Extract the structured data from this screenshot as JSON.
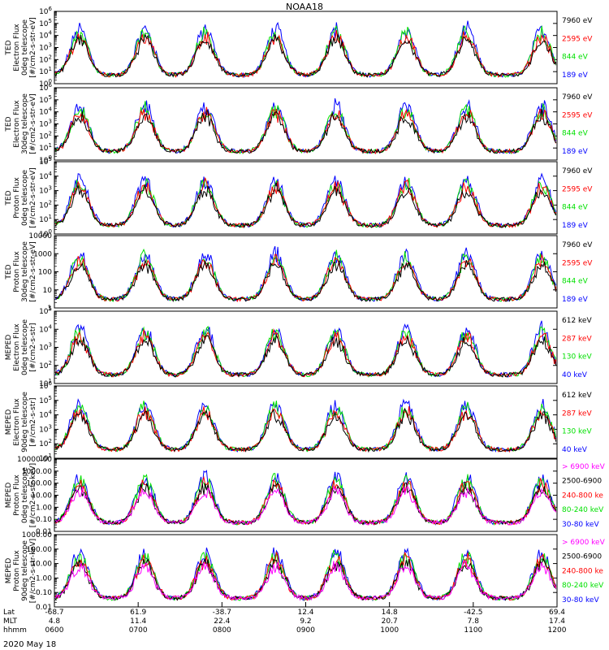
{
  "title": "NOAA18",
  "date_label": "2020 May 18",
  "colors": {
    "blue": "#0000ff",
    "red": "#ff0000",
    "green": "#00e000",
    "black": "#000000",
    "magenta": "#ff00ff"
  },
  "chart_data": {
    "type": "scatter",
    "x_axis": {
      "times": [
        "0600",
        "0700",
        "0800",
        "0900",
        "1000",
        "1100",
        "1200"
      ],
      "rows": [
        {
          "label": "Lat",
          "values": [
            "-68.7",
            "61.9",
            "-38.7",
            "12.4",
            "14.8",
            "-42.5",
            "69.4"
          ]
        },
        {
          "label": "MLT",
          "values": [
            "4.8",
            "11.4",
            "22.4",
            "9.2",
            "20.7",
            "7.8",
            "17.4"
          ]
        },
        {
          "label": "hhmm",
          "values": [
            "0600",
            "0700",
            "0800",
            "0900",
            "1000",
            "1100",
            "1200"
          ]
        }
      ]
    },
    "panels": [
      {
        "ylabel": [
          "TED",
          "Electron Flux",
          "0deg telescope",
          "[#/cm2-s-str-eV]"
        ],
        "yscale": "log",
        "ytick_style": "power",
        "ylim_exp": [
          0,
          6
        ],
        "legend": [
          {
            "text": "7960 eV",
            "color": "black"
          },
          {
            "text": "2595 eV",
            "color": "red"
          },
          {
            "text": "844 eV",
            "color": "green"
          },
          {
            "text": "189 eV",
            "color": "blue"
          }
        ]
      },
      {
        "ylabel": [
          "TED",
          "Electron Flux",
          "30deg telescope",
          "[#/cm2-s-str-eV]"
        ],
        "yscale": "log",
        "ytick_style": "power",
        "ylim_exp": [
          0,
          6
        ],
        "legend": [
          {
            "text": "7960 eV",
            "color": "black"
          },
          {
            "text": "2595 eV",
            "color": "red"
          },
          {
            "text": "844 eV",
            "color": "green"
          },
          {
            "text": "189 eV",
            "color": "blue"
          }
        ]
      },
      {
        "ylabel": [
          "TED",
          "Proton Flux",
          "0deg telescope",
          "[#/cm2-s-str-eV]"
        ],
        "yscale": "log",
        "ytick_style": "power",
        "ylim_exp": [
          0,
          5
        ],
        "legend": [
          {
            "text": "7960 eV",
            "color": "black"
          },
          {
            "text": "2595 eV",
            "color": "red"
          },
          {
            "text": "844 eV",
            "color": "green"
          },
          {
            "text": "189 eV",
            "color": "blue"
          }
        ]
      },
      {
        "ylabel": [
          "TED",
          "Proton Flux",
          "30deg telescope",
          "[#/cm2-s-str-eV]"
        ],
        "yscale": "log",
        "ytick_style": "plain",
        "ylim_exp": [
          0,
          4
        ],
        "tick_labels": [
          "1",
          "10",
          "100",
          "1000",
          "10000"
        ],
        "legend": [
          {
            "text": "7960 eV",
            "color": "black"
          },
          {
            "text": "2595 eV",
            "color": "red"
          },
          {
            "text": "844 eV",
            "color": "green"
          },
          {
            "text": "189 eV",
            "color": "blue"
          }
        ]
      },
      {
        "ylabel": [
          "MEPED",
          "Electron Flux",
          "0deg telescope",
          "[#/cm2-s-str]"
        ],
        "yscale": "log",
        "ytick_style": "power",
        "ylim_exp": [
          1,
          5
        ],
        "legend": [
          {
            "text": "612 keV",
            "color": "black"
          },
          {
            "text": "287 keV",
            "color": "red"
          },
          {
            "text": "130 keV",
            "color": "green"
          },
          {
            "text": "40 keV",
            "color": "blue"
          }
        ]
      },
      {
        "ylabel": [
          "MEPED",
          "Electron Flux",
          "90deg telescope",
          "[#/cm2-s-str]"
        ],
        "yscale": "log",
        "ytick_style": "power",
        "ylim_exp": [
          1,
          6
        ],
        "legend": [
          {
            "text": "612 keV",
            "color": "black"
          },
          {
            "text": "287 keV",
            "color": "red"
          },
          {
            "text": "130 keV",
            "color": "green"
          },
          {
            "text": "40 keV",
            "color": "blue"
          }
        ]
      },
      {
        "ylabel": [
          "MEPED",
          "Proton Flux",
          "0deg telescope",
          "[#/cm2-s-str-keV]"
        ],
        "yscale": "log",
        "ytick_style": "decimal",
        "ylim_exp": [
          -2,
          4
        ],
        "tick_labels": [
          "0.01",
          "0.10",
          "1.00",
          "10.00",
          "100.00",
          "1000.00",
          "10000.00"
        ],
        "legend": [
          {
            "text": "> 6900 keV",
            "color": "magenta"
          },
          {
            "text": "2500-6900",
            "color": "black"
          },
          {
            "text": "240-800 ke",
            "color": "red"
          },
          {
            "text": "80-240 keV",
            "color": "green"
          },
          {
            "text": "30-80 keV",
            "color": "blue"
          }
        ]
      },
      {
        "ylabel": [
          "MEPED",
          "Proton Flux",
          "90deg telescope",
          "[#/cm2-s-str-keV]"
        ],
        "yscale": "log",
        "ytick_style": "decimal",
        "ylim_exp": [
          -2,
          3
        ],
        "tick_labels": [
          "0.01",
          "0.10",
          "1.00",
          "10.00",
          "100.00",
          "1000.00"
        ],
        "legend": [
          {
            "text": "> 6900 keV",
            "color": "magenta"
          },
          {
            "text": "2500-6900",
            "color": "black"
          },
          {
            "text": "240-800 ke",
            "color": "red"
          },
          {
            "text": "80-240 keV",
            "color": "green"
          },
          {
            "text": "30-80 keV",
            "color": "blue"
          }
        ]
      }
    ]
  }
}
